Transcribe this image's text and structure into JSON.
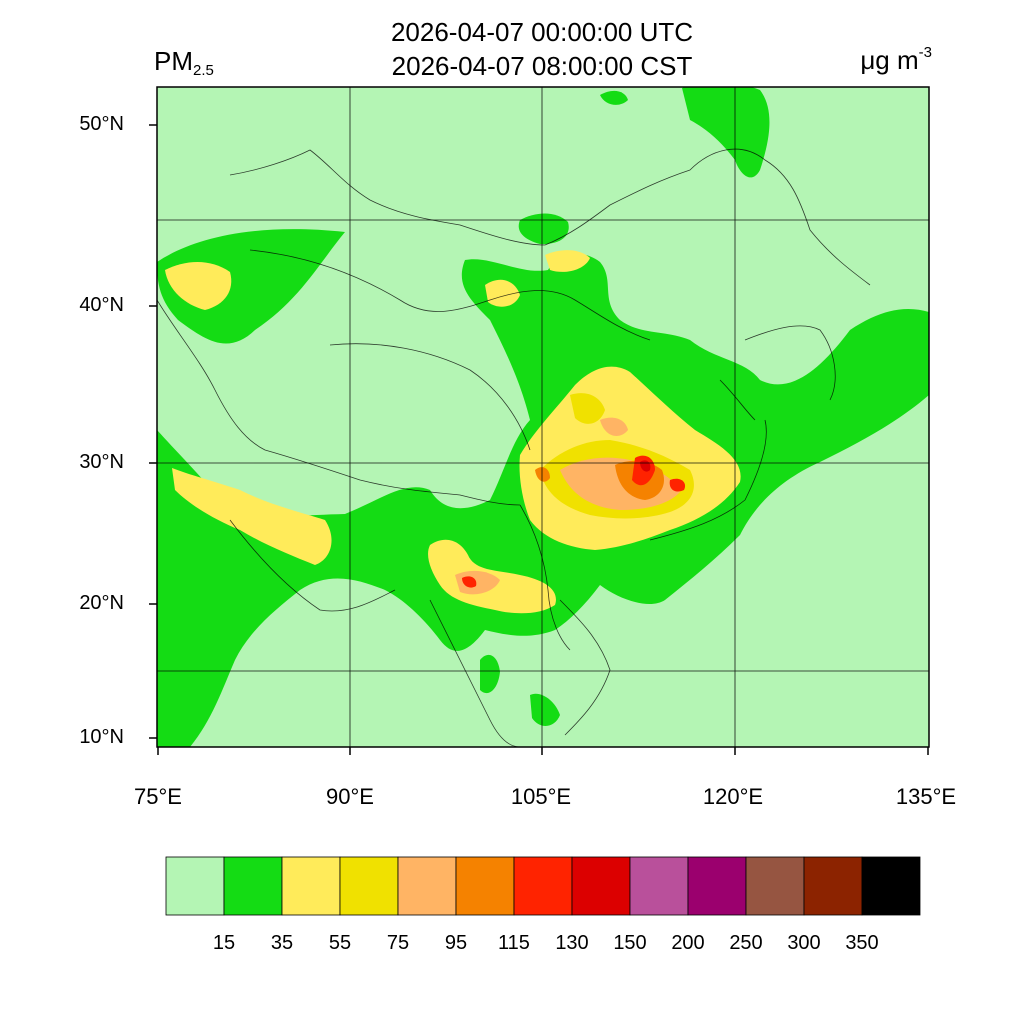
{
  "header": {
    "time_utc": "2026-04-07 00:00:00 UTC",
    "time_cst": "2026-04-07 08:00:00 CST",
    "variable_main": "PM",
    "variable_sub": "2.5",
    "units_main": "μg m",
    "units_exp": "-3"
  },
  "map": {
    "lat_labels": [
      "50°N",
      "40°N",
      "30°N",
      "20°N",
      "10°N"
    ],
    "lon_labels": [
      "75°E",
      "90°E",
      "105°E",
      "120°E",
      "135°E"
    ],
    "lon_range": [
      75,
      135
    ],
    "lat_range": [
      9,
      52
    ]
  },
  "colorbar": {
    "colors": [
      "#b4f5b4",
      "#14dc14",
      "#ffeb5a",
      "#f0e100",
      "#ffb464",
      "#f58200",
      "#ff2300",
      "#dc0000",
      "#b9509b",
      "#9b006e",
      "#965541",
      "#8c2300",
      "#000000"
    ],
    "labels": [
      "15",
      "35",
      "55",
      "75",
      "95",
      "115",
      "130",
      "150",
      "200",
      "250",
      "300",
      "350"
    ]
  }
}
